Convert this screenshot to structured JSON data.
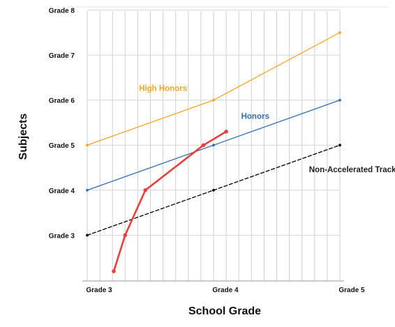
{
  "chart_data": {
    "type": "line",
    "xlabel": "School Grade",
    "ylabel": "Subjects",
    "x_ticks": [
      {
        "value": 3,
        "label": "Grade 3"
      },
      {
        "value": 4,
        "label": "Grade 4"
      },
      {
        "value": 5,
        "label": "Grade 5"
      }
    ],
    "y_ticks": [
      {
        "value": 3,
        "label": "Grade 3"
      },
      {
        "value": 4,
        "label": "Grade 4"
      },
      {
        "value": 5,
        "label": "Grade 5"
      },
      {
        "value": 6,
        "label": "Grade 6"
      },
      {
        "value": 7,
        "label": "Grade 7"
      },
      {
        "value": 8,
        "label": "Grade 8"
      }
    ],
    "xlim": [
      3,
      5
    ],
    "ylim": [
      2,
      8
    ],
    "grid": "vertical lines every 0.1 grade, horizontal lines at each grade",
    "series": [
      {
        "name": "High Honors",
        "color": "#f5a623",
        "style": "solid",
        "points": [
          {
            "x": 3,
            "y": 5
          },
          {
            "x": 4,
            "y": 6
          },
          {
            "x": 5,
            "y": 7.5
          }
        ]
      },
      {
        "name": "Honors",
        "color": "#2e6fb5",
        "style": "solid",
        "points": [
          {
            "x": 3,
            "y": 4
          },
          {
            "x": 4,
            "y": 5
          },
          {
            "x": 5,
            "y": 6
          }
        ]
      },
      {
        "name": "Non-Accelerated Track",
        "color": "#000000",
        "style": "dashed",
        "points": [
          {
            "x": 3,
            "y": 3
          },
          {
            "x": 4,
            "y": 4
          },
          {
            "x": 5,
            "y": 5
          }
        ]
      },
      {
        "name": "",
        "color": "#e8413c",
        "style": "solid-thick",
        "points": [
          {
            "x": 3.21,
            "y": 2.2
          },
          {
            "x": 3.3,
            "y": 3
          },
          {
            "x": 3.46,
            "y": 4
          },
          {
            "x": 3.92,
            "y": 5
          },
          {
            "x": 4.1,
            "y": 5.3
          }
        ]
      }
    ],
    "annotations": [
      {
        "text": "High Honors",
        "color": "#f5a623",
        "x": 3.6,
        "y": 6.2
      },
      {
        "text": "Honors",
        "color": "#2e6fb5",
        "x": 4.33,
        "y": 5.58
      },
      {
        "text": "Non-Accelerated Track",
        "color": "#222222",
        "x": 5.1,
        "y": 4.4
      }
    ]
  }
}
